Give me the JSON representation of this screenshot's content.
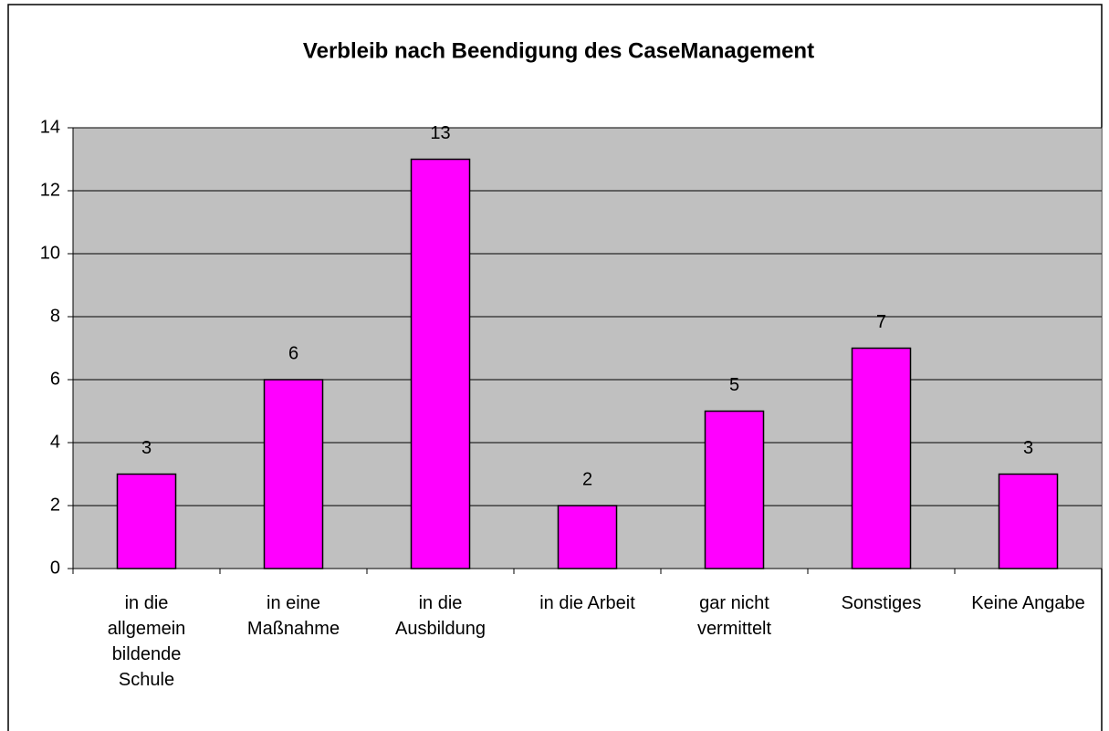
{
  "chart_data": {
    "type": "bar",
    "title": "Verbleib nach Beendigung des CaseManagement",
    "categories": [
      "in die allgemein bildende Schule",
      "in eine Maßnahme",
      "in die Ausbildung",
      "in die Arbeit",
      "gar nicht vermittelt",
      "Sonstiges",
      "Keine Angabe"
    ],
    "values": [
      3,
      6,
      13,
      2,
      5,
      7,
      3
    ],
    "color": "#ff00ff",
    "ylim": [
      0,
      14
    ],
    "yticks": [
      0,
      2,
      4,
      6,
      8,
      10,
      12,
      14
    ],
    "grid": true
  }
}
